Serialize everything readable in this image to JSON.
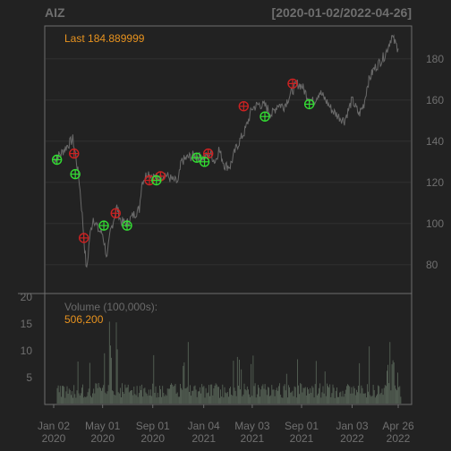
{
  "chart_data": {
    "type": "line",
    "title": "AIZ",
    "date_range_label": "[2020-01-02/2022-04-26]",
    "last_label": "Last 184.889999",
    "price_axis": {
      "ticks": [
        80,
        100,
        120,
        140,
        160,
        180
      ],
      "range": [
        66,
        196
      ]
    },
    "volume_axis": {
      "ticks": [
        5,
        10,
        15,
        20
      ],
      "range": [
        0,
        20
      ]
    },
    "volume_label": "Volume (100,000s):",
    "volume_last_label": "506,200",
    "x_ticks": [
      {
        "line1": "Jan 02",
        "line2": "2020",
        "date": "2020-01-02"
      },
      {
        "line1": "May 01",
        "line2": "2020",
        "date": "2020-05-01"
      },
      {
        "line1": "Sep 01",
        "line2": "2020",
        "date": "2020-09-01"
      },
      {
        "line1": "Jan 04",
        "line2": "2021",
        "date": "2021-01-04"
      },
      {
        "line1": "May 03",
        "line2": "2021",
        "date": "2021-05-03"
      },
      {
        "line1": "Sep 01",
        "line2": "2021",
        "date": "2021-09-01"
      },
      {
        "line1": "Jan 03",
        "line2": "2022",
        "date": "2022-01-03"
      },
      {
        "line1": "Apr 26",
        "line2": "2022",
        "date": "2022-04-26"
      }
    ],
    "x_range": [
      "2020-01-02",
      "2022-04-26"
    ],
    "price_series": {
      "name": "AIZ close",
      "points": [
        [
          "2020-01-02",
          131
        ],
        [
          "2020-01-20",
          134
        ],
        [
          "2020-02-05",
          138
        ],
        [
          "2020-02-18",
          141
        ],
        [
          "2020-02-25",
          133
        ],
        [
          "2020-03-05",
          120
        ],
        [
          "2020-03-12",
          104
        ],
        [
          "2020-03-18",
          88
        ],
        [
          "2020-03-23",
          77
        ],
        [
          "2020-03-30",
          93
        ],
        [
          "2020-04-08",
          103
        ],
        [
          "2020-04-20",
          97
        ],
        [
          "2020-05-01",
          95
        ],
        [
          "2020-05-12",
          83
        ],
        [
          "2020-05-20",
          96
        ],
        [
          "2020-06-05",
          108
        ],
        [
          "2020-06-15",
          101
        ],
        [
          "2020-06-29",
          100
        ],
        [
          "2020-07-15",
          104
        ],
        [
          "2020-07-30",
          107
        ],
        [
          "2020-08-05",
          120
        ],
        [
          "2020-08-20",
          125
        ],
        [
          "2020-09-01",
          123
        ],
        [
          "2020-09-15",
          122
        ],
        [
          "2020-10-01",
          124
        ],
        [
          "2020-10-20",
          121
        ],
        [
          "2020-11-02",
          120
        ],
        [
          "2020-11-10",
          130
        ],
        [
          "2020-11-25",
          132
        ],
        [
          "2020-12-10",
          133
        ],
        [
          "2021-01-04",
          132
        ],
        [
          "2021-01-20",
          134
        ],
        [
          "2021-02-01",
          130
        ],
        [
          "2021-02-10",
          136
        ],
        [
          "2021-02-25",
          128
        ],
        [
          "2021-03-10",
          128
        ],
        [
          "2021-03-25",
          137
        ],
        [
          "2021-04-15",
          145
        ],
        [
          "2021-05-03",
          156
        ],
        [
          "2021-05-20",
          158
        ],
        [
          "2021-06-05",
          157
        ],
        [
          "2021-06-20",
          153
        ],
        [
          "2021-07-05",
          158
        ],
        [
          "2021-07-20",
          157
        ],
        [
          "2021-08-05",
          163
        ],
        [
          "2021-08-20",
          168
        ],
        [
          "2021-09-01",
          167
        ],
        [
          "2021-09-15",
          162
        ],
        [
          "2021-09-30",
          159
        ],
        [
          "2021-10-15",
          164
        ],
        [
          "2021-10-30",
          160
        ],
        [
          "2021-11-15",
          155
        ],
        [
          "2021-12-01",
          152
        ],
        [
          "2021-12-15",
          150
        ],
        [
          "2022-01-03",
          160
        ],
        [
          "2022-01-20",
          153
        ],
        [
          "2022-02-01",
          158
        ],
        [
          "2022-02-10",
          168
        ],
        [
          "2022-02-25",
          175
        ],
        [
          "2022-03-10",
          178
        ],
        [
          "2022-03-25",
          182
        ],
        [
          "2022-04-10",
          191
        ],
        [
          "2022-04-20",
          187
        ],
        [
          "2022-04-26",
          185
        ]
      ]
    },
    "buy_signals": [
      [
        "2020-01-10",
        131
      ],
      [
        "2020-02-24",
        124
      ],
      [
        "2020-05-04",
        99
      ],
      [
        "2020-06-30",
        99
      ],
      [
        "2020-09-10",
        121
      ],
      [
        "2020-12-18",
        132
      ],
      [
        "2021-01-06",
        130
      ],
      [
        "2021-06-03",
        152
      ],
      [
        "2021-09-20",
        158
      ]
    ],
    "sell_signals": [
      [
        "2020-02-21",
        134
      ],
      [
        "2020-03-16",
        93
      ],
      [
        "2020-06-02",
        105
      ],
      [
        "2020-08-24",
        121
      ],
      [
        "2020-09-20",
        123
      ],
      [
        "2021-01-15",
        134
      ],
      [
        "2021-04-12",
        157
      ],
      [
        "2021-08-10",
        168
      ]
    ],
    "colors": {
      "background": "#222222",
      "panel": "#222222",
      "frame": "#6e6e6e",
      "grid": "#303030",
      "price_line": "#6a6a6a",
      "volume_bar": "#5c6a5c",
      "buy": "#33dd33",
      "sell": "#cc2222",
      "accent": "#e8931f",
      "text": "#707070"
    },
    "grid": true
  }
}
